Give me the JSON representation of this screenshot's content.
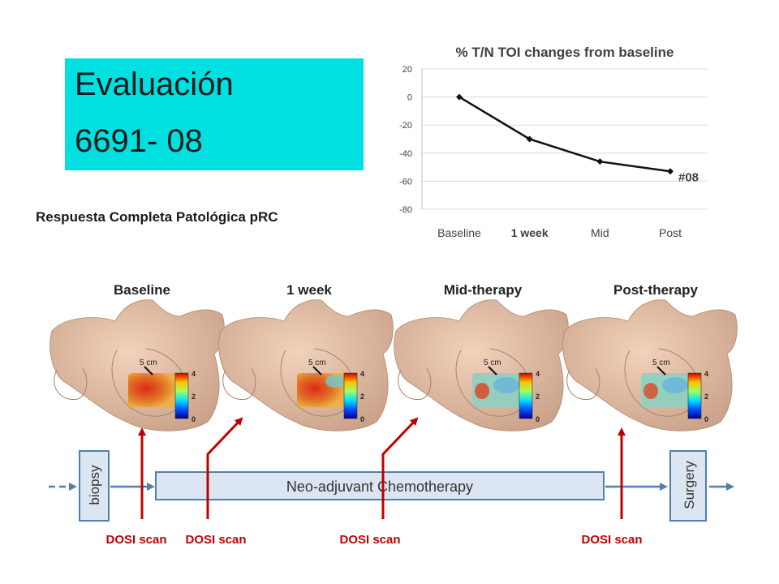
{
  "header": {
    "title_line1": "Evaluación",
    "title_line2": "6691- 08",
    "subtitle": "Respuesta Completa Patológica  pRC"
  },
  "chart_data": {
    "type": "line",
    "title": "% T/N TOI changes from baseline",
    "categories": [
      "Baseline",
      "1 week",
      "Mid",
      "Post"
    ],
    "series": [
      {
        "name": "#08",
        "values": [
          0,
          -30,
          -46,
          -53
        ]
      }
    ],
    "yticks": [
      20,
      0,
      -20,
      -40,
      -60,
      -80
    ],
    "ylim": [
      -80,
      20
    ],
    "grid": true,
    "annotation": "#08",
    "colors": {
      "line": "#111111",
      "grid": "#d9d9d9"
    }
  },
  "stages": [
    "Baseline",
    "1 week",
    "Mid-therapy",
    "Post-therapy"
  ],
  "scale_label": "5 cm",
  "colorbar": {
    "ticks": [
      "4",
      "2",
      "0"
    ]
  },
  "timeline": {
    "biopsy": "biopsy",
    "chemo": "Neo-adjuvant Chemotherapy",
    "surgery": "Surgery",
    "scan_label": "DOSI scan",
    "colors": {
      "arrow": "#c00000",
      "flow": "#4f7fb0",
      "box_fill": "#dce6f2"
    }
  }
}
